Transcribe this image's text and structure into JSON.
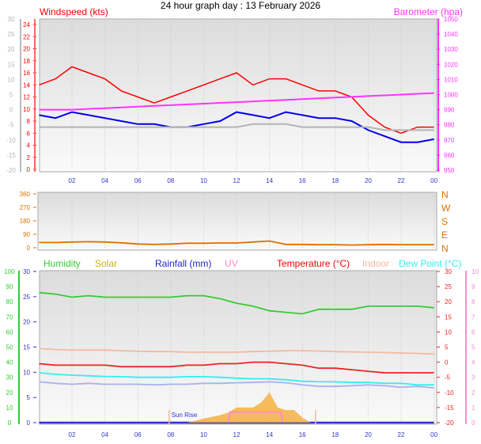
{
  "title": "24 hour graph day : 13 February 2026",
  "hour_labels": [
    "02",
    "04",
    "06",
    "08",
    "10",
    "12",
    "14",
    "16",
    "18",
    "20",
    "22",
    "00"
  ],
  "chart_data": [
    {
      "type": "line",
      "legend": {
        "windspeed": "Windspeed (kts)",
        "barometer": "Barometer (hpa)"
      },
      "colors": {
        "gust": "#ff0000",
        "speed": "#0000ee",
        "grey": "#b4b4b4",
        "barometer": "#ff33ff"
      },
      "x_hours": [
        0,
        1,
        2,
        3,
        4,
        5,
        6,
        7,
        8,
        9,
        10,
        11,
        12,
        13,
        14,
        15,
        16,
        17,
        18,
        19,
        20,
        21,
        22,
        23,
        24
      ],
      "grey_axis_ticks": [
        30,
        25,
        20,
        15,
        10,
        5,
        0,
        -5,
        -10,
        -15,
        -20
      ],
      "wind_axis_ticks": [
        24,
        22,
        20,
        18,
        16,
        14,
        12,
        10,
        8,
        6,
        4,
        2,
        0
      ],
      "baro_axis_ticks": [
        1050,
        1040,
        1030,
        1020,
        1010,
        1000,
        990,
        980,
        970,
        960,
        950
      ],
      "ylim_wind": [
        0,
        24
      ],
      "ylim_grey": [
        -20,
        30
      ],
      "ylim_baro": [
        950,
        1050
      ],
      "series": [
        {
          "key": "gust",
          "values": [
            14,
            15,
            17,
            16,
            15,
            13,
            12,
            11,
            12,
            13,
            14,
            15,
            16,
            14,
            15,
            15,
            14,
            13,
            13,
            12,
            9,
            7,
            6,
            7,
            7
          ]
        },
        {
          "key": "speed",
          "values": [
            9,
            8.5,
            9.5,
            9,
            8.5,
            8,
            7.5,
            7.5,
            7,
            7,
            7.5,
            8,
            9.5,
            9,
            8.5,
            9.5,
            9,
            8.5,
            8.5,
            8,
            6.5,
            5.5,
            4.5,
            4.5,
            5
          ]
        },
        {
          "key": "grey",
          "values": [
            7,
            7,
            7,
            7,
            7,
            7,
            7,
            7,
            7,
            7,
            7,
            7,
            7,
            7.5,
            7.5,
            7.5,
            7,
            7,
            7,
            7,
            7,
            6.5,
            6.5,
            6.5,
            6.5
          ]
        },
        {
          "key": "barometer",
          "axis": "baro",
          "values": [
            990,
            990,
            990,
            990.5,
            991,
            991.5,
            992,
            992.5,
            993,
            993.5,
            994,
            994.5,
            995,
            995.5,
            996,
            996.5,
            997,
            997.5,
            998,
            998.5,
            999,
            999.5,
            1000,
            1000.5,
            1001
          ]
        }
      ]
    },
    {
      "type": "line",
      "left_ticks": [
        360,
        270,
        180,
        90,
        0
      ],
      "right_labels": [
        "N",
        "W",
        "S",
        "E",
        "N"
      ],
      "ylim": [
        0,
        360
      ],
      "colors": {
        "direction": "#e07000"
      },
      "x_hours": [
        0,
        1,
        2,
        3,
        4,
        5,
        6,
        7,
        8,
        9,
        10,
        11,
        12,
        13,
        14,
        15,
        16,
        17,
        18,
        19,
        20,
        21,
        22,
        23,
        24
      ],
      "series": [
        {
          "key": "direction",
          "values": [
            35,
            35,
            38,
            40,
            38,
            33,
            25,
            22,
            25,
            30,
            30,
            32,
            32,
            38,
            45,
            22,
            22,
            20,
            20,
            18,
            20,
            22,
            20,
            20,
            20
          ]
        }
      ]
    },
    {
      "type": "line",
      "legend": [
        "Humidity",
        "Solar",
        "Rainfall (mm)",
        "UV",
        "Temperature (°C)",
        "Indoor",
        "Dew Point (°C)"
      ],
      "colors": {
        "humidity": "#33cc33",
        "solar": "#f5b041",
        "rainfall": "#3333cc",
        "uv": "#ff88cc",
        "temperature": "#ee2222",
        "indoor": "#f5b9a0",
        "dewpoint": "#33eeee",
        "other": "#aab0f0"
      },
      "humidity_ticks": [
        100,
        90,
        80,
        70,
        60,
        50,
        40,
        30,
        20,
        10,
        0
      ],
      "rain_ticks": [
        30,
        25,
        20,
        15,
        10,
        5,
        0
      ],
      "temp_ticks": [
        30,
        25,
        20,
        15,
        10,
        5,
        0,
        -5,
        -10,
        -15,
        -20
      ],
      "uv_ticks": [
        10,
        9,
        8,
        7,
        6,
        5,
        4,
        3,
        2,
        1,
        0
      ],
      "sun_rise_label": "Sun Rise",
      "sun_rise_hour": 7.9,
      "sun_set_hour": 16.8,
      "x_hours": [
        0,
        1,
        2,
        3,
        4,
        5,
        6,
        7,
        8,
        9,
        10,
        11,
        12,
        13,
        14,
        15,
        16,
        17,
        18,
        19,
        20,
        21,
        22,
        23,
        24
      ],
      "series": [
        {
          "key": "humidity",
          "axis": "humidity",
          "values": [
            86,
            85,
            83,
            84,
            83,
            83,
            83,
            83,
            83,
            84,
            84,
            82,
            79,
            77,
            74,
            73,
            72,
            75,
            75,
            75,
            77,
            77,
            77,
            77,
            76
          ]
        },
        {
          "key": "indoor",
          "axis": "temp",
          "values": [
            4.5,
            4.2,
            4,
            4,
            4,
            3.8,
            3.6,
            3.5,
            3.5,
            3.3,
            3.3,
            3.3,
            3.3,
            3.5,
            3.6,
            3.8,
            3.8,
            3.7,
            3.5,
            3.4,
            3.3,
            3.2,
            3,
            2.9,
            2.7
          ]
        },
        {
          "key": "temperature",
          "axis": "temp",
          "values": [
            -0.5,
            -1,
            -1,
            -1,
            -1,
            -1.5,
            -1.5,
            -1.5,
            -1.5,
            -1,
            -1,
            -0.5,
            -0.5,
            0,
            0,
            -0.5,
            -1,
            -2,
            -2,
            -2.5,
            -3,
            -3.5,
            -3.5,
            -3.5,
            -3.5
          ]
        },
        {
          "key": "dewpoint",
          "axis": "temp",
          "values": [
            -3.5,
            -4,
            -4.3,
            -4.5,
            -4.7,
            -4.8,
            -5,
            -5,
            -5,
            -4.8,
            -4.8,
            -5,
            -5.3,
            -5.5,
            -5.5,
            -5.8,
            -6.3,
            -6.5,
            -6.5,
            -6.7,
            -6.7,
            -7,
            -7,
            -7.5,
            -7.5
          ]
        },
        {
          "key": "other",
          "axis": "temp",
          "values": [
            -6.5,
            -7,
            -7.3,
            -7,
            -7.3,
            -7.3,
            -7.3,
            -7.5,
            -7.3,
            -7.3,
            -7,
            -7,
            -6.8,
            -6.7,
            -6.5,
            -6.8,
            -7.5,
            -8,
            -8,
            -7.8,
            -7.5,
            -7.8,
            -8.3,
            -8,
            -8.5
          ]
        },
        {
          "key": "rainfall",
          "axis": "rain",
          "values": [
            0,
            0,
            0,
            0,
            0,
            0,
            0,
            0,
            0,
            0,
            0,
            0,
            0,
            0,
            0,
            0,
            0,
            0,
            0,
            0,
            0,
            0,
            0,
            0,
            0
          ]
        },
        {
          "key": "solar",
          "axis": "rain",
          "x": [
            9,
            10,
            11,
            11.5,
            12,
            13,
            13.5,
            14,
            14.5,
            15,
            15.5,
            16,
            16.5
          ],
          "values": [
            0,
            0.8,
            1.5,
            2,
            3,
            3,
            4,
            6,
            3,
            2.5,
            2.5,
            1,
            0
          ]
        },
        {
          "key": "uv",
          "axis": "uv",
          "x": [
            11.5,
            11.6,
            14.7,
            14.8
          ],
          "values": [
            0,
            0.7,
            0.7,
            0
          ]
        }
      ]
    }
  ]
}
